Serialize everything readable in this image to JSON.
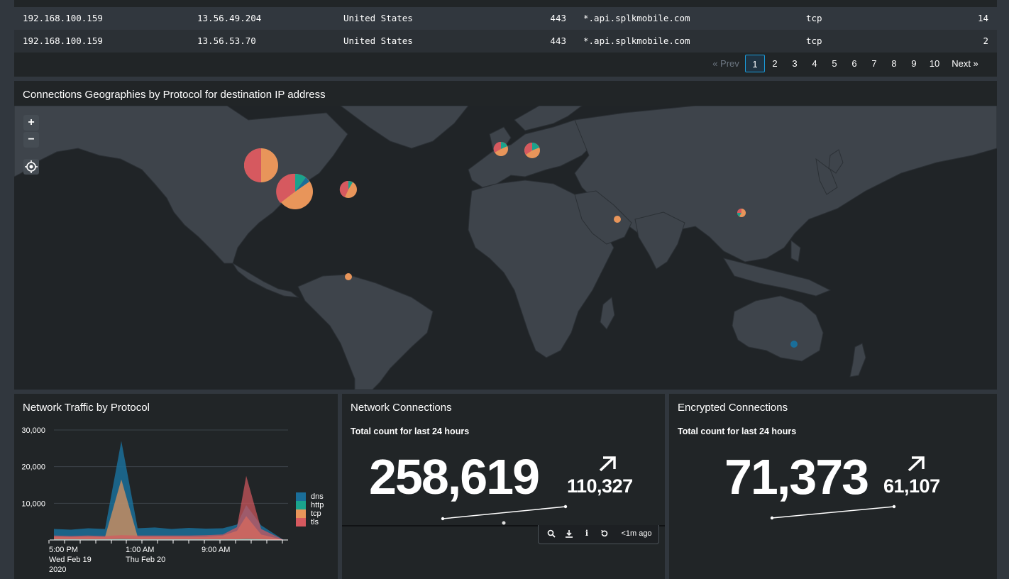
{
  "table": {
    "rows": [
      {
        "src_ip": "192.168.100.159",
        "dest_ip": "13.56.49.204",
        "country": "United States",
        "port": "443",
        "host": "*.api.splkmobile.com",
        "transport": "tcp",
        "count": "14"
      },
      {
        "src_ip": "192.168.100.159",
        "dest_ip": "13.56.53.70",
        "country": "United States",
        "port": "443",
        "host": "*.api.splkmobile.com",
        "transport": "tcp",
        "count": "2"
      }
    ],
    "pagination": {
      "prev": "« Prev",
      "pages": [
        "1",
        "2",
        "3",
        "4",
        "5",
        "6",
        "7",
        "8",
        "9",
        "10"
      ],
      "active": "1",
      "next": "Next »"
    }
  },
  "map_panel": {
    "title": "Connections Geographies by Protocol for destination IP address",
    "controls": {
      "zoom_in": "+",
      "zoom_out": "−"
    }
  },
  "traffic_panel": {
    "title": "Network Traffic by Protocol",
    "chart_data": {
      "type": "area",
      "y_ticks": [
        "30,000",
        "20,000",
        "10,000"
      ],
      "ylim": [
        0,
        30000
      ],
      "x_tick_labels": [
        [
          "5:00 PM",
          "Wed Feb 19",
          "2020"
        ],
        [
          "1:00 AM",
          "Thu Feb 20"
        ],
        [
          "9:00 AM"
        ]
      ],
      "x": [
        "Wed Feb 19 5:00 PM",
        "7:00 PM",
        "9:00 PM",
        "11:00 PM",
        "Thu Feb 20 12:00 AM",
        "1:00 AM",
        "3:00 AM",
        "5:00 AM",
        "7:00 AM",
        "9:00 AM",
        "11:00 AM",
        "1:00 PM",
        "2:00 PM",
        "3:00 PM",
        "4:00 PM"
      ],
      "series": [
        {
          "name": "dns",
          "color": "#1a6e99",
          "values": [
            3000,
            2800,
            3200,
            3000,
            27000,
            3200,
            3400,
            3000,
            3300,
            3100,
            3200,
            4200,
            9500,
            4000,
            0
          ]
        },
        {
          "name": "http",
          "color": "#1aa38d",
          "values": [
            200,
            200,
            200,
            200,
            300,
            200,
            200,
            200,
            200,
            200,
            200,
            200,
            300,
            200,
            0
          ]
        },
        {
          "name": "tcp",
          "color": "#e8955a",
          "values": [
            900,
            800,
            900,
            800,
            16500,
            900,
            900,
            900,
            900,
            900,
            1200,
            2500,
            6500,
            1500,
            0
          ]
        },
        {
          "name": "tls",
          "color": "#d6595f",
          "values": [
            1200,
            1100,
            1200,
            1100,
            1300,
            1200,
            1200,
            1200,
            1200,
            1300,
            1500,
            3500,
            17500,
            3000,
            0
          ]
        }
      ],
      "legend_position": "right"
    }
  },
  "netconn_panel": {
    "title": "Network Connections",
    "subtitle": "Total count for last 24 hours",
    "value": "258,619",
    "delta": "110,327",
    "toolbar": {
      "time": "<1m ago"
    }
  },
  "enc_panel": {
    "title": "Encrypted Connections",
    "subtitle": "Total count for last 24 hours",
    "value": "71,373",
    "delta": "61,107"
  }
}
